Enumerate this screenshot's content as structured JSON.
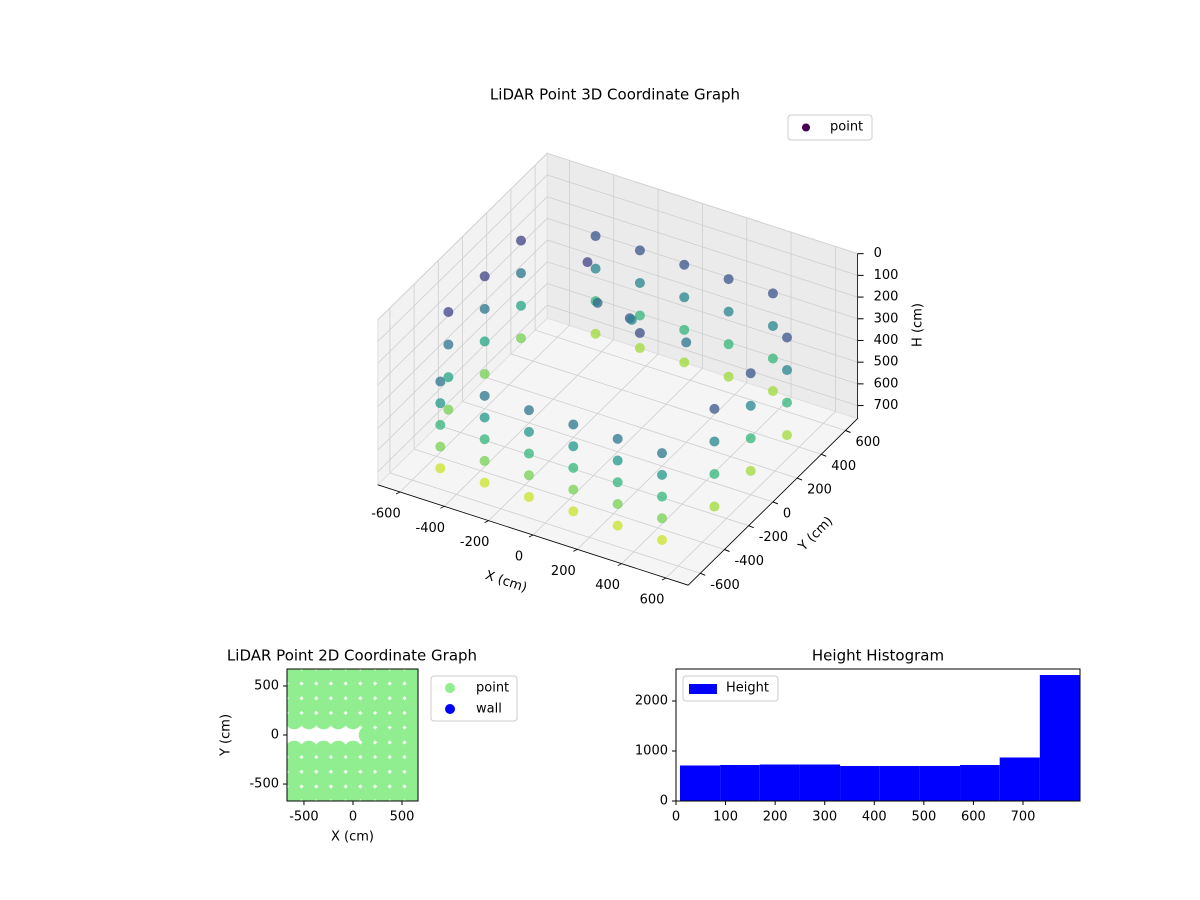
{
  "chart_data": [
    {
      "type": "scatter3d",
      "title": "LiDAR Point 3D Coordinate Graph",
      "xlabel": "X (cm)",
      "ylabel": "Y (cm)",
      "zlabel": "H (cm)",
      "xlim": [
        -700,
        700
      ],
      "ylim": [
        -700,
        700
      ],
      "zlim": [
        0,
        760
      ],
      "z_inverted": true,
      "xticks": [
        -600,
        -400,
        -200,
        0,
        200,
        400,
        600
      ],
      "yticks": [
        -600,
        -400,
        -200,
        0,
        200,
        400,
        600
      ],
      "zticks": [
        0,
        100,
        200,
        300,
        400,
        500,
        600,
        700
      ],
      "colormap": "viridis",
      "legend": "upper right",
      "series": [
        {
          "name": "point",
          "color": "#440154",
          "x": [
            -500,
            -500,
            -500,
            -500,
            -500,
            -300,
            -300,
            -300,
            -300,
            -300,
            -100,
            -100,
            -100,
            -100,
            -100,
            100,
            100,
            100,
            100,
            100,
            300,
            300,
            300,
            300,
            300,
            500,
            500,
            500,
            500,
            500,
            -400,
            -400,
            -400,
            -400,
            -200,
            -200,
            -200,
            -200,
            0,
            0,
            0,
            0,
            200,
            200,
            200,
            200,
            400,
            400,
            400,
            400,
            -600,
            -600,
            -600,
            -600,
            -600,
            -600,
            -600,
            -600,
            -600,
            -600,
            -600,
            -600,
            600,
            600,
            600,
            600,
            600,
            600,
            600,
            600,
            600,
            600,
            600,
            600,
            -300,
            -200,
            0,
            100,
            -100,
            200
          ],
          "y": [
            -550,
            -550,
            -550,
            -550,
            -550,
            -550,
            -550,
            -550,
            -550,
            -550,
            -550,
            -550,
            -550,
            -550,
            -550,
            -550,
            -550,
            -550,
            -550,
            -550,
            -550,
            -550,
            -550,
            -550,
            -550,
            -550,
            -550,
            -550,
            -550,
            -550,
            550,
            550,
            550,
            550,
            550,
            550,
            550,
            550,
            550,
            550,
            550,
            550,
            550,
            550,
            550,
            550,
            550,
            550,
            550,
            550,
            -300,
            -300,
            -300,
            -300,
            0,
            0,
            0,
            0,
            300,
            300,
            300,
            300,
            -300,
            -300,
            -300,
            -300,
            0,
            0,
            0,
            0,
            300,
            300,
            300,
            300,
            300,
            200,
            100,
            0,
            300,
            200
          ],
          "z": [
            300,
            400,
            500,
            600,
            700,
            300,
            400,
            500,
            600,
            700,
            300,
            400,
            500,
            600,
            700,
            300,
            400,
            500,
            600,
            700,
            300,
            400,
            500,
            600,
            700,
            300,
            400,
            500,
            600,
            700,
            200,
            350,
            500,
            650,
            200,
            350,
            500,
            650,
            200,
            350,
            500,
            650,
            200,
            350,
            500,
            650,
            200,
            350,
            500,
            650,
            150,
            300,
            450,
            600,
            150,
            300,
            450,
            600,
            150,
            300,
            450,
            600,
            200,
            350,
            500,
            650,
            200,
            350,
            500,
            650,
            200,
            350,
            500,
            650,
            150,
            250,
            200,
            180,
            350,
            300
          ]
        }
      ]
    },
    {
      "type": "scatter",
      "title": "LiDAR Point 2D Coordinate Graph",
      "xlabel": "X (cm)",
      "ylabel": "Y (cm)",
      "xlim": [
        -673,
        663
      ],
      "ylim": [
        -673,
        673
      ],
      "xticks": [
        -500,
        0,
        500
      ],
      "yticks": [
        -500,
        0,
        500
      ],
      "legend": "outside right",
      "series": [
        {
          "name": "point",
          "color": "#90ee90",
          "x": [
            -600,
            -450,
            -300,
            -150,
            0,
            150,
            300,
            450,
            600,
            -600,
            -450,
            -300,
            -150,
            0,
            150,
            300,
            450,
            600,
            -600,
            -450,
            -300,
            -150,
            0,
            150,
            300,
            450,
            600,
            -600,
            -450,
            -300,
            -150,
            0,
            150,
            300,
            450,
            600,
            -600,
            -450,
            -300,
            -150,
            0,
            150,
            300,
            450,
            600,
            -600,
            -450,
            -300,
            -150,
            0,
            150,
            300,
            450,
            600,
            -600,
            -450,
            -300,
            -150,
            0,
            150,
            300,
            450,
            600,
            -600,
            -450,
            -300,
            -150,
            0,
            150,
            300,
            450,
            600,
            150,
            300,
            450,
            600
          ],
          "y": [
            -600,
            -600,
            -600,
            -600,
            -600,
            -600,
            -600,
            -600,
            -600,
            -450,
            -450,
            -450,
            -450,
            -450,
            -450,
            -450,
            -450,
            -450,
            -300,
            -300,
            -300,
            -300,
            -300,
            -300,
            -300,
            -300,
            -300,
            -150,
            -150,
            -150,
            -150,
            -150,
            -150,
            -150,
            -150,
            -150,
            150,
            150,
            150,
            150,
            150,
            150,
            150,
            150,
            150,
            300,
            300,
            300,
            300,
            300,
            300,
            300,
            300,
            300,
            450,
            450,
            450,
            450,
            450,
            450,
            450,
            450,
            450,
            600,
            600,
            600,
            600,
            600,
            600,
            600,
            600,
            600,
            0,
            0,
            0,
            0
          ]
        },
        {
          "name": "wall",
          "color": "#0000ff",
          "x": [],
          "y": []
        }
      ]
    },
    {
      "type": "histogram",
      "title": "Height Histogram",
      "bins": [
        8,
        89,
        169,
        250,
        331,
        411,
        492,
        573,
        653,
        734,
        815
      ],
      "values": [
        710,
        720,
        730,
        730,
        700,
        700,
        700,
        720,
        870,
        2520
      ],
      "series_name": "Height",
      "color": "#0000ff",
      "xlim": [
        0,
        815
      ],
      "ylim": [
        0,
        2640
      ],
      "xticks": [
        0,
        100,
        200,
        300,
        400,
        500,
        600,
        700
      ],
      "yticks": [
        0,
        1000,
        2000
      ],
      "legend": "upper left"
    }
  ]
}
